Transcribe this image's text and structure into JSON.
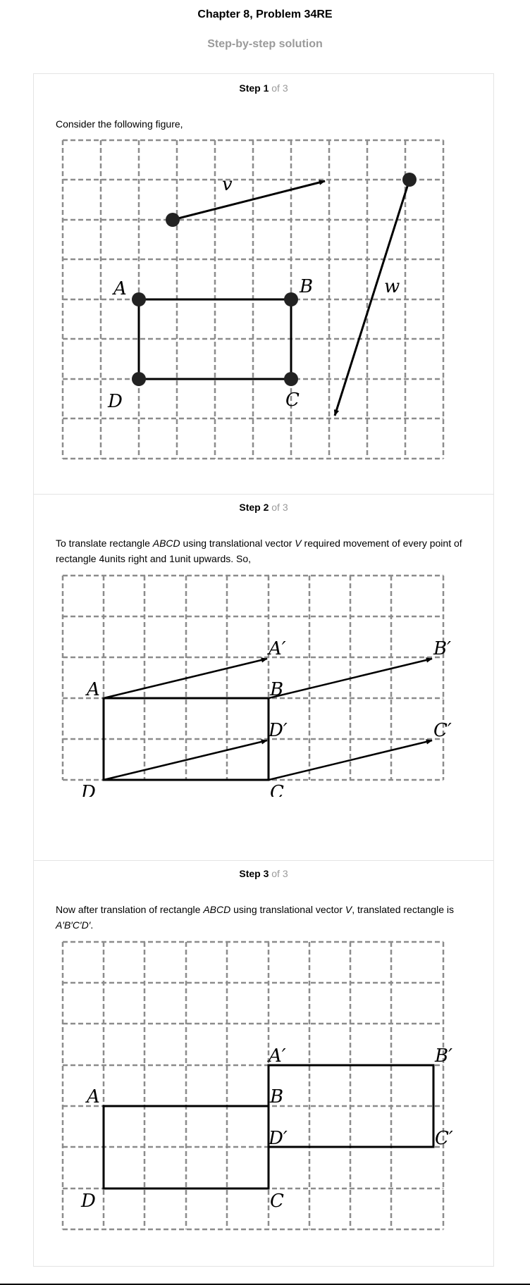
{
  "header": {
    "title": "Chapter 8, Problem 34RE",
    "subtitle": "Step-by-step solution"
  },
  "steps": [
    {
      "num": "Step 1",
      "of": "of 3",
      "text": "Consider the following figure,"
    },
    {
      "num": "Step 2",
      "of": "of 3",
      "text_parts": {
        "p1": "To translate rectangle ",
        "abcd": "ABCD",
        "p2": " using translational vector ",
        "v": "V",
        "p3": " required movement of every point of rectangle 4units right and 1unit upwards. So,"
      }
    },
    {
      "num": "Step 3",
      "of": "of 3",
      "text_parts": {
        "p1": "Now after translation of rectangle ",
        "abcd": "ABCD",
        "p2": " using translational vector ",
        "v": "V",
        "p3": ", translated rectangle is ",
        "prime": "A′B′C′D′",
        "p4": "."
      }
    }
  ],
  "figures": {
    "fig1": {
      "labels": {
        "A": "A",
        "B": "B",
        "C": "C",
        "D": "D",
        "v": "v",
        "w": "w"
      }
    },
    "fig2": {
      "labels": {
        "A": "A",
        "B": "B",
        "C": "C",
        "D": "D",
        "A2": "A′",
        "B2": "B′",
        "C2": "C′",
        "D2": "D′"
      }
    },
    "fig3": {
      "labels": {
        "A": "A",
        "B": "B",
        "C": "C",
        "D": "D",
        "A2": "A′",
        "B2": "B′",
        "C2": "C′",
        "D2": "D′"
      }
    }
  }
}
